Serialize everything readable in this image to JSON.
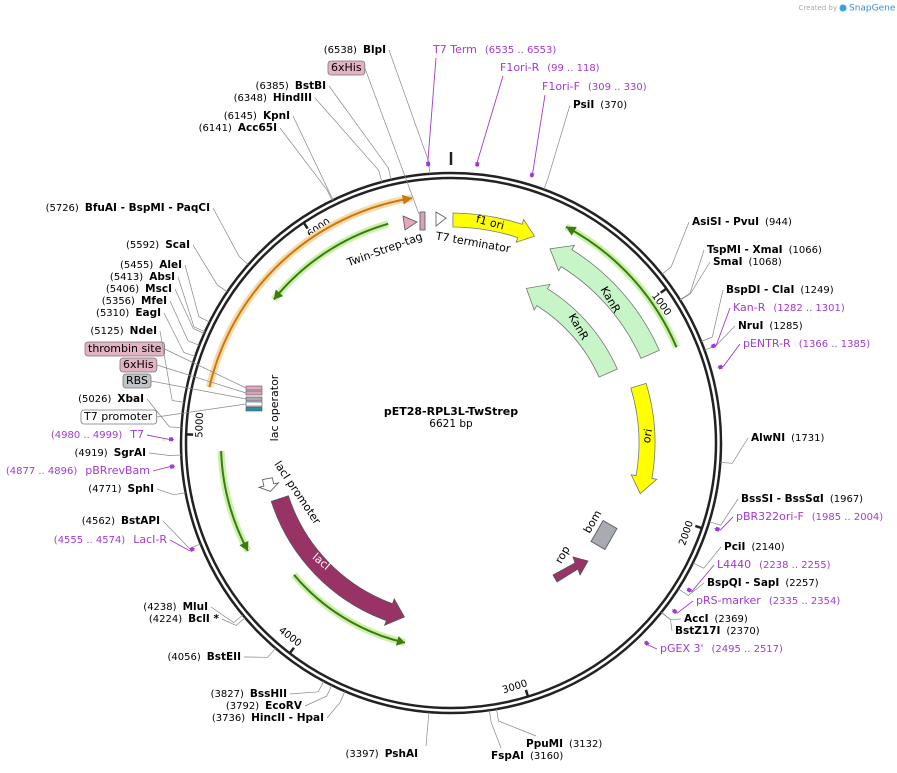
{
  "header": {
    "credit": "Created by",
    "brand": "SnapGene"
  },
  "map": {
    "name": "pET28-RPL3L-TwStrep",
    "length": "6621 bp",
    "ring_ticks": [
      "1000",
      "2000",
      "3000",
      "4000",
      "5000",
      "6000"
    ]
  },
  "sites": [
    {
      "name": "BlpI",
      "position": "(6538)"
    },
    {
      "name": "BstBI",
      "position": "(6385)"
    },
    {
      "name": "HindIII",
      "position": "(6348)"
    },
    {
      "name": "KpnI",
      "position": "(6145)"
    },
    {
      "name": "Acc65I",
      "position": "(6141)"
    },
    {
      "name": "BfuAI  - BspMI  - PaqCI",
      "position": "(5726)"
    },
    {
      "name": "ScaI",
      "position": "(5592)"
    },
    {
      "name": "AleI",
      "position": "(5455)"
    },
    {
      "name": "AbsI",
      "position": "(5413)"
    },
    {
      "name": "MscI",
      "position": "(5406)"
    },
    {
      "name": "MfeI",
      "position": "(5356)"
    },
    {
      "name": "EagI",
      "position": "(5310)"
    },
    {
      "name": "NdeI",
      "position": "(5125)"
    },
    {
      "name": "XbaI",
      "position": "(5026)"
    },
    {
      "name": "SgrAI",
      "position": "(4919)"
    },
    {
      "name": "SphI",
      "position": "(4771)"
    },
    {
      "name": "BstAPI",
      "position": "(4562)"
    },
    {
      "name": "MluI",
      "position": "(4238)"
    },
    {
      "name": "BclI *",
      "position": "(4224)"
    },
    {
      "name": "BstEII",
      "position": "(4056)"
    },
    {
      "name": "BssHII",
      "position": "(3827)"
    },
    {
      "name": "EcoRV",
      "position": "(3792)"
    },
    {
      "name": "HincII  - HpaI",
      "position": "(3736)"
    },
    {
      "name": "PshAI",
      "position": "(3397)"
    },
    {
      "name": "PsiI",
      "position": "(370)"
    },
    {
      "name": "AsiSI  - PvuI",
      "position": "(944)"
    },
    {
      "name": "TspMI  - XmaI",
      "position": "(1066)"
    },
    {
      "name": "SmaI",
      "position": "(1068)"
    },
    {
      "name": "BspDI  - ClaI",
      "position": "(1249)"
    },
    {
      "name": "NruI",
      "position": "(1285)"
    },
    {
      "name": "AlwNI",
      "position": "(1731)"
    },
    {
      "name": "BssSI  - BssSαI",
      "position": "(1967)"
    },
    {
      "name": "PciI",
      "position": "(2140)"
    },
    {
      "name": "BspQI  - SapI",
      "position": "(2257)"
    },
    {
      "name": "AccI",
      "position": "(2369)"
    },
    {
      "name": "BstZ17I",
      "position": "(2370)"
    },
    {
      "name": "PpuMI",
      "position": "(3132)"
    },
    {
      "name": "FspAI",
      "position": "(3160)"
    }
  ],
  "primers": [
    {
      "name": "T7 Term",
      "range": "(6535 .. 6553)"
    },
    {
      "name": "F1ori-R",
      "range": "(99 .. 118)"
    },
    {
      "name": "F1ori-F",
      "range": "(309 .. 330)"
    },
    {
      "name": "Kan-R",
      "range": "(1282 .. 1301)"
    },
    {
      "name": "pENTR-R",
      "range": "(1366 .. 1385)"
    },
    {
      "name": "pBR322ori-F",
      "range": "(1985 .. 2004)"
    },
    {
      "name": "L4440",
      "range": "(2238 .. 2255)"
    },
    {
      "name": "pRS-marker",
      "range": "(2335 .. 2354)"
    },
    {
      "name": "pGEX 3'",
      "range": "(2495 .. 2517)"
    },
    {
      "name": "T7",
      "range": "(4980 .. 4999)"
    },
    {
      "name": "pBRrevBam",
      "range": "(4877 .. 4896)"
    },
    {
      "name": "LacI-R",
      "range": "(4555 .. 4574)"
    }
  ],
  "tags": [
    "6xHis",
    "thrombin site",
    "6xHis",
    "RBS",
    "T7 promoter"
  ],
  "features": [
    "Twin-Strep-tag",
    "T7 terminator",
    "f1 ori",
    "KanR",
    "KanR",
    "ori",
    "bom",
    "rop",
    "lacI promoter",
    "lacI",
    "lac operator"
  ]
}
